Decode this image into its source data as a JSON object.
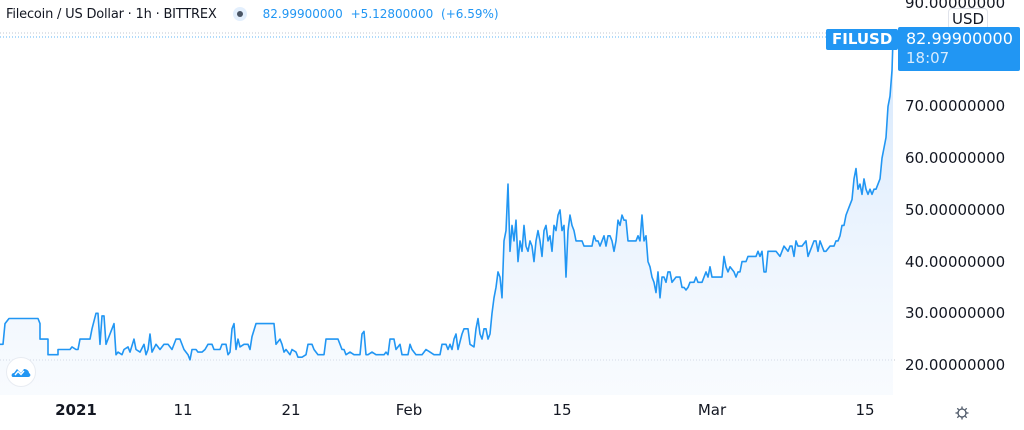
{
  "header": {
    "symbol_title": "Filecoin / US Dollar · 1h · BITTREX",
    "last_price": "82.99900000",
    "change": "+5.12800000",
    "change_pct": "(+6.59%)",
    "status_icon": "market-status-dot-icon"
  },
  "price_scale": {
    "currency": "USD",
    "ticks": [
      "90.00000000",
      "80.00000000",
      "70.00000000",
      "60.00000000",
      "50.00000000",
      "40.00000000",
      "30.00000000",
      "20.00000000"
    ],
    "symbol_label": "FILUSD",
    "current_price": "82.99900000",
    "countdown": "18:07"
  },
  "time_scale": {
    "ticks": [
      "2021",
      "11",
      "21",
      "Feb",
      "15",
      "Mar",
      "15"
    ],
    "settings_icon": "gear-icon"
  },
  "colors": {
    "line": "#2196f3",
    "area_top": "#dbeafd",
    "label_bg": "#2196f3",
    "text": "#131722"
  },
  "chart_data": {
    "type": "area",
    "title": "Filecoin / US Dollar · 1h · BITTREX",
    "xlabel": "",
    "ylabel": "USD",
    "ylim": [
      18,
      92
    ],
    "grid": false,
    "x": [
      "2021-01-01",
      "2021-01-04",
      "2021-01-08",
      "2021-01-11",
      "2021-01-15",
      "2021-01-19",
      "2021-01-21",
      "2021-01-25",
      "2021-01-29",
      "2021-02-01",
      "2021-02-05",
      "2021-02-08",
      "2021-02-10",
      "2021-02-11",
      "2021-02-13",
      "2021-02-16",
      "2021-02-18",
      "2021-02-21",
      "2021-02-23",
      "2021-02-25",
      "2021-03-01",
      "2021-03-04",
      "2021-03-07",
      "2021-03-10",
      "2021-03-12",
      "2021-03-13",
      "2021-03-15",
      "2021-03-16",
      "2021-03-17"
    ],
    "series": [
      {
        "name": "FILUSD",
        "values": [
          24,
          28,
          22,
          23,
          22,
          24,
          26,
          23,
          22,
          22,
          23,
          25,
          38,
          47,
          44,
          46,
          45,
          43,
          35,
          37,
          38,
          42,
          42,
          43,
          43,
          52,
          55,
          70,
          83
        ]
      }
    ],
    "current_value": 82.999,
    "change": 5.128,
    "change_pct": 6.59
  }
}
